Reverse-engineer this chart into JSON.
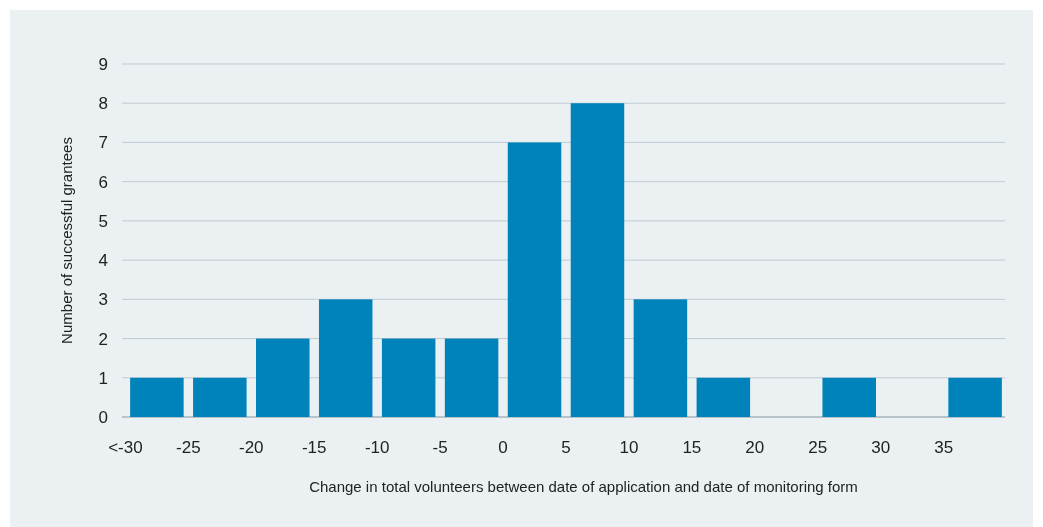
{
  "chart_data": {
    "type": "bar",
    "xlabel": "Change in total volunteers between date of application and date of monitoring form",
    "ylabel": "Number of successful grantees",
    "categories": [
      "<-30",
      "-25",
      "-20",
      "-15",
      "-10",
      "-5",
      "0",
      "5",
      "10",
      "15",
      "20",
      "25",
      "30",
      "35"
    ],
    "values": [
      1,
      1,
      2,
      3,
      2,
      2,
      7,
      8,
      3,
      1,
      0,
      1,
      0,
      1
    ],
    "color": "#0082ba",
    "ylim": [
      0,
      9
    ],
    "yticks": [
      0,
      1,
      2,
      3,
      4,
      5,
      6,
      7,
      8,
      9
    ],
    "grid": "y"
  }
}
